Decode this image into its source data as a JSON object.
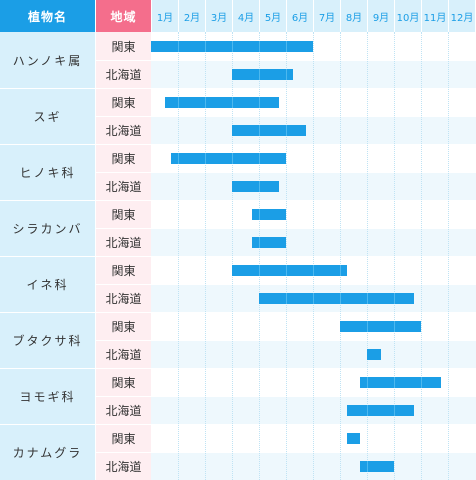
{
  "headers": {
    "plant": "植物名",
    "region": "地域"
  },
  "chart_data": {
    "type": "bar",
    "subtype": "gantt",
    "months": [
      "1月",
      "2月",
      "3月",
      "4月",
      "5月",
      "6月",
      "7月",
      "8月",
      "9月",
      "10月",
      "11月",
      "12月"
    ],
    "x_unit": "month",
    "xlim": [
      1,
      13
    ],
    "plants": [
      {
        "name": "ハンノキ属",
        "rows": [
          {
            "region": "関東",
            "start": 1.0,
            "end": 7.0
          },
          {
            "region": "北海道",
            "start": 4.0,
            "end": 6.25
          }
        ]
      },
      {
        "name": "スギ",
        "rows": [
          {
            "region": "関東",
            "start": 1.5,
            "end": 5.75
          },
          {
            "region": "北海道",
            "start": 4.0,
            "end": 6.75
          }
        ]
      },
      {
        "name": "ヒノキ科",
        "rows": [
          {
            "region": "関東",
            "start": 1.75,
            "end": 6.0
          },
          {
            "region": "北海道",
            "start": 4.0,
            "end": 5.75
          }
        ]
      },
      {
        "name": "シラカンバ",
        "rows": [
          {
            "region": "関東",
            "start": 4.75,
            "end": 6.0
          },
          {
            "region": "北海道",
            "start": 4.75,
            "end": 6.0
          }
        ]
      },
      {
        "name": "イネ科",
        "rows": [
          {
            "region": "関東",
            "start": 4.0,
            "end": 8.25
          },
          {
            "region": "北海道",
            "start": 5.0,
            "end": 10.75
          }
        ]
      },
      {
        "name": "ブタクサ科",
        "rows": [
          {
            "region": "関東",
            "start": 8.0,
            "end": 11.0
          },
          {
            "region": "北海道",
            "start": 9.0,
            "end": 9.5
          }
        ]
      },
      {
        "name": "ヨモギ科",
        "rows": [
          {
            "region": "関東",
            "start": 8.75,
            "end": 11.75
          },
          {
            "region": "北海道",
            "start": 8.25,
            "end": 10.75
          }
        ]
      },
      {
        "name": "カナムグラ",
        "rows": [
          {
            "region": "関東",
            "start": 8.25,
            "end": 8.75
          },
          {
            "region": "北海道",
            "start": 8.75,
            "end": 10.0
          }
        ]
      }
    ]
  },
  "colors": {
    "bar": "#1b9ee6",
    "header_plant": "#1b9ee6",
    "header_region": "#f46e8c",
    "plant_bg": "#d8f0fb",
    "region_bg": "#feeef1",
    "alt_row": "#eef8fd"
  }
}
